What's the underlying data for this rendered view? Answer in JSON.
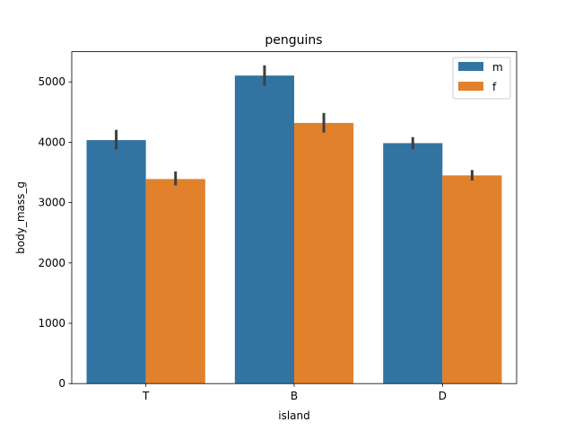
{
  "chart_data": {
    "type": "bar",
    "title": "penguins",
    "xlabel": "island",
    "ylabel": "body_mass_g",
    "categories": [
      "T",
      "B",
      "D"
    ],
    "ylim": [
      0,
      5500
    ],
    "yticks": [
      0,
      1000,
      2000,
      3000,
      4000,
      5000
    ],
    "yticklabels": [
      "0",
      "1000",
      "2000",
      "3000",
      "4000",
      "5000"
    ],
    "series": [
      {
        "name": "m",
        "color": "#3274a1",
        "values": [
          4035,
          5105,
          3985
        ],
        "ci_low": [
          3880,
          4935,
          3885
        ],
        "ci_high": [
          4205,
          5275,
          4085
        ]
      },
      {
        "name": "f",
        "color": "#e1812c",
        "values": [
          3390,
          4320,
          3450
        ],
        "ci_low": [
          3285,
          4160,
          3365
        ],
        "ci_high": [
          3515,
          4485,
          3540
        ]
      }
    ],
    "legend_position": "upper right",
    "errorbar_color": "#3f3f3f"
  }
}
